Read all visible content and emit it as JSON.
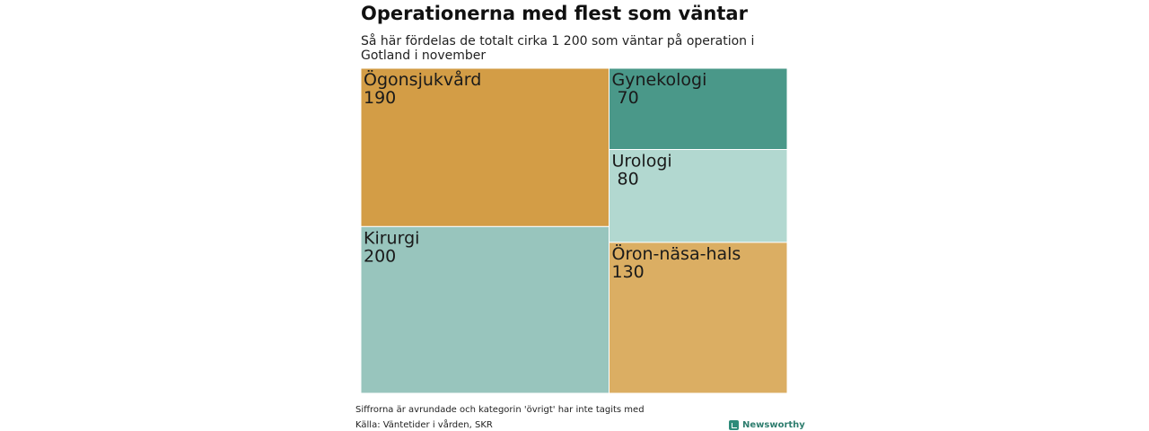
{
  "chart_data": {
    "type": "treemap",
    "title": "Operationerna med flest som väntar",
    "subtitle": "Så här fördelas de totalt cirka 1 200 som väntar på operation i Gotland i november",
    "items": [
      {
        "name": "Ögonsjukvård",
        "value": 190,
        "label": "190",
        "color": "#d39d46"
      },
      {
        "name": "Kirurgi",
        "value": 200,
        "label": "200",
        "color": "#98c5bd"
      },
      {
        "name": "Gynekologi",
        "value": 70,
        "label": " 70",
        "color": "#4a9889"
      },
      {
        "name": "Urologi",
        "value": 80,
        "label": " 80",
        "color": "#b2d8d0"
      },
      {
        "name": "Öron-näsa-hals",
        "value": 130,
        "label": "130",
        "color": "#dbae63"
      }
    ],
    "note": "Siffrorna är avrundade och kategorin 'övrigt' har inte tagits med",
    "source": "Källa: Väntetider i vården, SKR"
  },
  "brand": {
    "name": "Newsworthy",
    "color": "#2e8b7a"
  }
}
